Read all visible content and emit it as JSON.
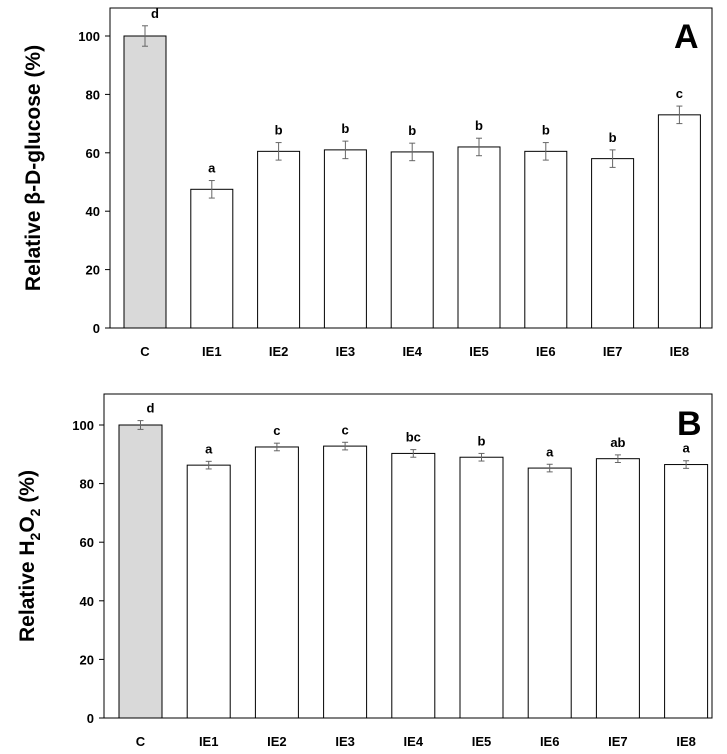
{
  "chart_data": [
    {
      "type": "bar",
      "panel_letter": "A",
      "ylabel": "Relative β-D-glucose (%)",
      "categories": [
        "C",
        "IE1",
        "IE2",
        "IE3",
        "IE4",
        "IE5",
        "IE6",
        "IE7",
        "IE8"
      ],
      "values": [
        100,
        47.5,
        60.5,
        61,
        60.3,
        62,
        60.5,
        58,
        73
      ],
      "errors": [
        3.5,
        3,
        3,
        3,
        3,
        3,
        3,
        3,
        3
      ],
      "significance": [
        "d",
        "a",
        "b",
        "b",
        "b",
        "b",
        "b",
        "b",
        "c"
      ],
      "ylim": [
        0,
        110
      ],
      "yticks": [
        0,
        20,
        40,
        60,
        80,
        100
      ],
      "bar_colors": [
        "#d9d9d9",
        "#ffffff",
        "#ffffff",
        "#ffffff",
        "#ffffff",
        "#ffffff",
        "#ffffff",
        "#ffffff",
        "#ffffff"
      ]
    },
    {
      "type": "bar",
      "panel_letter": "B",
      "ylabel_parts": [
        "Relative H",
        "2",
        "O",
        "2",
        " (%)"
      ],
      "categories": [
        "C",
        "IE1",
        "IE2",
        "IE3",
        "IE4",
        "IE5",
        "IE6",
        "IE7",
        "IE8"
      ],
      "values": [
        100,
        86.3,
        92.5,
        92.8,
        90.3,
        89,
        85.3,
        88.5,
        86.5
      ],
      "errors": [
        1.5,
        1.3,
        1.3,
        1.3,
        1.3,
        1.3,
        1.3,
        1.3,
        1.3
      ],
      "significance": [
        "d",
        "a",
        "c",
        "c",
        "bc",
        "b",
        "a",
        "ab",
        "a"
      ],
      "ylim": [
        0,
        112
      ],
      "yticks": [
        0,
        20,
        40,
        60,
        80,
        100
      ],
      "bar_colors": [
        "#d9d9d9",
        "#ffffff",
        "#ffffff",
        "#ffffff",
        "#ffffff",
        "#ffffff",
        "#ffffff",
        "#ffffff",
        "#ffffff"
      ]
    }
  ]
}
